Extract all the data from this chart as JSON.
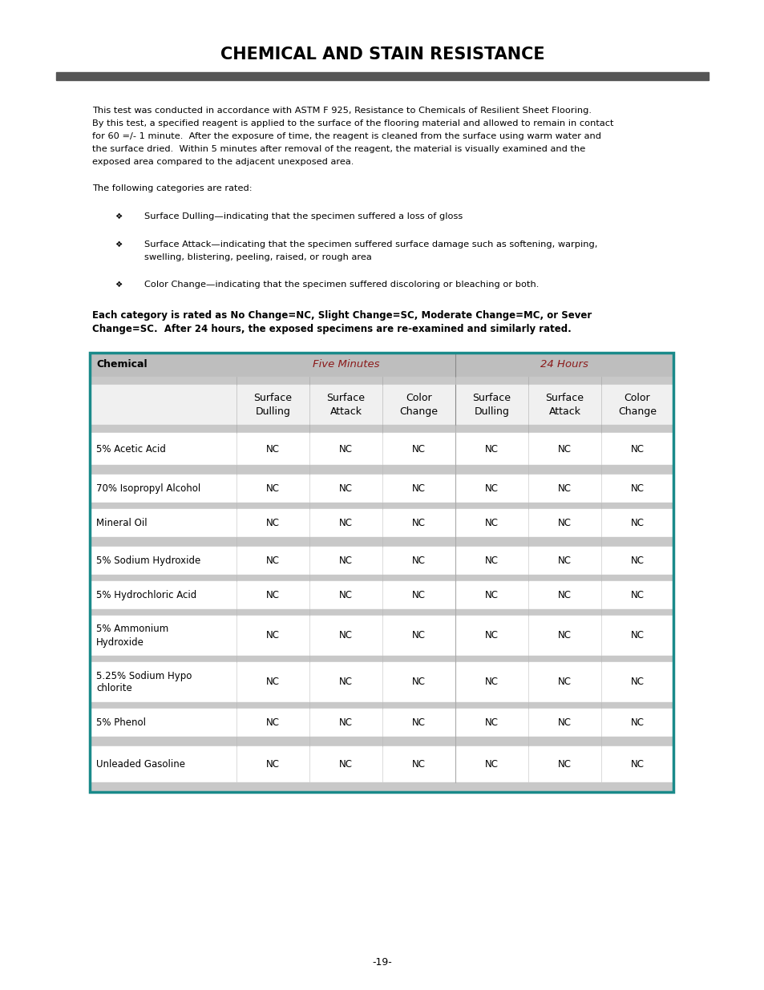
{
  "title": "CHEMICAL AND STAIN RESISTANCE",
  "body_text_lines": [
    "This test was conducted in accordance with ASTM F 925, Resistance to Chemicals of Resilient Sheet Flooring.",
    "By this test, a specified reagent is applied to the surface of the flooring material and allowed to remain in contact",
    "for 60 =/- 1 minute.  After the exposure of time, the reagent is cleaned from the surface using warm water and",
    "the surface dried.  Within 5 minutes after removal of the reagent, the material is visually examined and the",
    "exposed area compared to the adjacent unexposed area."
  ],
  "categories_intro": "The following categories are rated:",
  "bullet1": "Surface Dulling—indicating that the specimen suffered a loss of gloss",
  "bullet2a": "Surface Attack—indicating that the specimen suffered surface damage such as softening, warping,",
  "bullet2b": "swelling, blistering, peeling, raised, or rough area",
  "bullet3": "Color Change—indicating that the specimen suffered discoloring or bleaching or both.",
  "bold_line1": "Each category is rated as No Change=NC, Slight Change=SC, Moderate Change=MC, or Sever",
  "bold_line2": "Change=SC.  After 24 hours, the exposed specimens are re-examined and similarly rated.",
  "table_header_col": "Chemical",
  "table_header_five": "Five Minutes",
  "table_header_24": "24 Hours",
  "col_headers": [
    "Surface\nDulling",
    "Surface\nAttack",
    "Color\nChange",
    "Surface\nDulling",
    "Surface\nAttack",
    "Color\nChange"
  ],
  "chemicals": [
    "5% Acetic Acid",
    "70% Isopropyl Alcohol",
    "Mineral Oil",
    "5% Sodium Hydroxide",
    "5% Hydrochloric Acid",
    "5% Ammonium\nHydroxide",
    "5.25% Sodium Hypo\nchlorite",
    "5% Phenol",
    "Unleaded Gasoline"
  ],
  "values": [
    [
      "NC",
      "NC",
      "NC",
      "NC",
      "NC",
      "NC"
    ],
    [
      "NC",
      "NC",
      "NC",
      "NC",
      "NC",
      "NC"
    ],
    [
      "NC",
      "NC",
      "NC",
      "NC",
      "NC",
      "NC"
    ],
    [
      "NC",
      "NC",
      "NC",
      "NC",
      "NC",
      "NC"
    ],
    [
      "NC",
      "NC",
      "NC",
      "NC",
      "NC",
      "NC"
    ],
    [
      "NC",
      "NC",
      "NC",
      "NC",
      "NC",
      "NC"
    ],
    [
      "NC",
      "NC",
      "NC",
      "NC",
      "NC",
      "NC"
    ],
    [
      "NC",
      "NC",
      "NC",
      "NC",
      "NC",
      "NC"
    ],
    [
      "NC",
      "NC",
      "NC",
      "NC",
      "NC",
      "NC"
    ]
  ],
  "teal_border": "#1A8A8A",
  "header_bg": "#BEBEBE",
  "sep_bg": "#C8C8C8",
  "five_min_color": "#8B1A1A",
  "twentyfour_color": "#8B1A1A",
  "underline_color": "#555555",
  "page_number": "-19-",
  "background_color": "#FFFFFF"
}
